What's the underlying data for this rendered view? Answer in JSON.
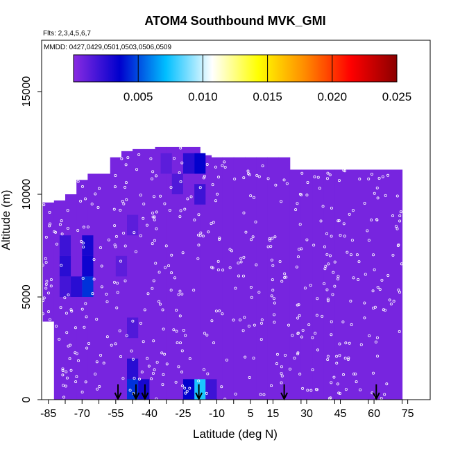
{
  "chart_data": {
    "type": "heatmap",
    "title": "ATOM4 Southbound MVK_GMI",
    "subtitle_flights": "Flts: 2,3,4,5,6,7",
    "subtitle_dates": "MMDD: 0427,0429,0501,0503,0506,0509",
    "xlabel": "Latitude (deg N)",
    "ylabel": "Altitude (m)",
    "xlim": [
      -88,
      85
    ],
    "ylim": [
      0,
      17500
    ],
    "x_ticks": [
      -85,
      -70,
      -55,
      -40,
      -25,
      -10,
      5,
      15,
      30,
      45,
      60,
      75
    ],
    "y_ticks": [
      0,
      5000,
      10000,
      15000
    ],
    "colorbar": {
      "range": [
        0,
        0.025
      ],
      "ticks": [
        0.005,
        0.01,
        0.015,
        0.02,
        0.025
      ],
      "tick_labels": [
        "0.005",
        "0.010",
        "0.015",
        "0.020",
        "0.025"
      ],
      "colors": [
        "#8a2be2",
        "#0000cd",
        "#00bfff",
        "#ffffff",
        "#ffff00",
        "#ff8c00",
        "#ff0000",
        "#8b0000"
      ]
    },
    "background_value": 0.0005,
    "data_extent": [
      [
        -85,
        3800,
        9600
      ],
      [
        -80,
        0,
        9700
      ],
      [
        -75,
        0,
        10000
      ],
      [
        -70,
        0,
        10700
      ],
      [
        -65,
        0,
        11000
      ],
      [
        -60,
        0,
        11000
      ],
      [
        -55,
        0,
        11800
      ],
      [
        -50,
        0,
        12100
      ],
      [
        -45,
        0,
        12200
      ],
      [
        -40,
        0,
        12200
      ],
      [
        -35,
        0,
        12300
      ],
      [
        -30,
        0,
        12300
      ],
      [
        -25,
        0,
        12300
      ],
      [
        -20,
        0,
        12300
      ],
      [
        -15,
        0,
        11900
      ],
      [
        -10,
        0,
        11800
      ],
      [
        -5,
        0,
        11800
      ],
      [
        0,
        0,
        11800
      ],
      [
        5,
        0,
        11800
      ],
      [
        10,
        0,
        11800
      ],
      [
        15,
        0,
        11800
      ],
      [
        20,
        0,
        11800
      ],
      [
        25,
        0,
        11200
      ],
      [
        30,
        0,
        11200
      ],
      [
        35,
        0,
        11200
      ],
      [
        40,
        0,
        11200
      ],
      [
        45,
        0,
        11200
      ],
      [
        50,
        0,
        11200
      ],
      [
        55,
        0,
        11200
      ],
      [
        60,
        0,
        11200
      ],
      [
        65,
        0,
        11200
      ],
      [
        70,
        0,
        11200
      ]
    ],
    "enhanced_cells": [
      [
        -80,
        -75,
        7000,
        8000,
        0.002
      ],
      [
        -80,
        -75,
        6000,
        7000,
        0.0025
      ],
      [
        -80,
        -75,
        5000,
        6000,
        0.0018
      ],
      [
        -70,
        -65,
        7000,
        8000,
        0.003
      ],
      [
        -70,
        -65,
        6000,
        7000,
        0.0032
      ],
      [
        -70,
        -65,
        5000,
        6000,
        0.0045
      ],
      [
        -75,
        -70,
        5000,
        6000,
        0.0025
      ],
      [
        -50,
        -45,
        1000,
        2000,
        0.0025
      ],
      [
        -50,
        -45,
        0,
        1000,
        0.0045
      ],
      [
        -45,
        -40,
        0,
        1000,
        0.003
      ],
      [
        -20,
        -15,
        0,
        1000,
        0.0075
      ],
      [
        -25,
        -20,
        0,
        1000,
        0.0035
      ],
      [
        -15,
        -10,
        0,
        1000,
        0.002
      ],
      [
        -20,
        -15,
        11000,
        12000,
        0.0035
      ],
      [
        -25,
        -20,
        11000,
        12000,
        0.0025
      ],
      [
        -30,
        -25,
        10000,
        11000,
        0.0015
      ],
      [
        -20,
        -15,
        9500,
        10500,
        0.002
      ],
      [
        -35,
        -30,
        11000,
        12000,
        0.0012
      ],
      [
        -55,
        -50,
        6000,
        7000,
        0.0012
      ],
      [
        -50,
        -45,
        8000,
        9000,
        0.0012
      ],
      [
        -50,
        -45,
        3000,
        4000,
        0.0015
      ]
    ],
    "markers_latitude": [
      -54,
      -46,
      -42,
      -18,
      20,
      61
    ]
  }
}
